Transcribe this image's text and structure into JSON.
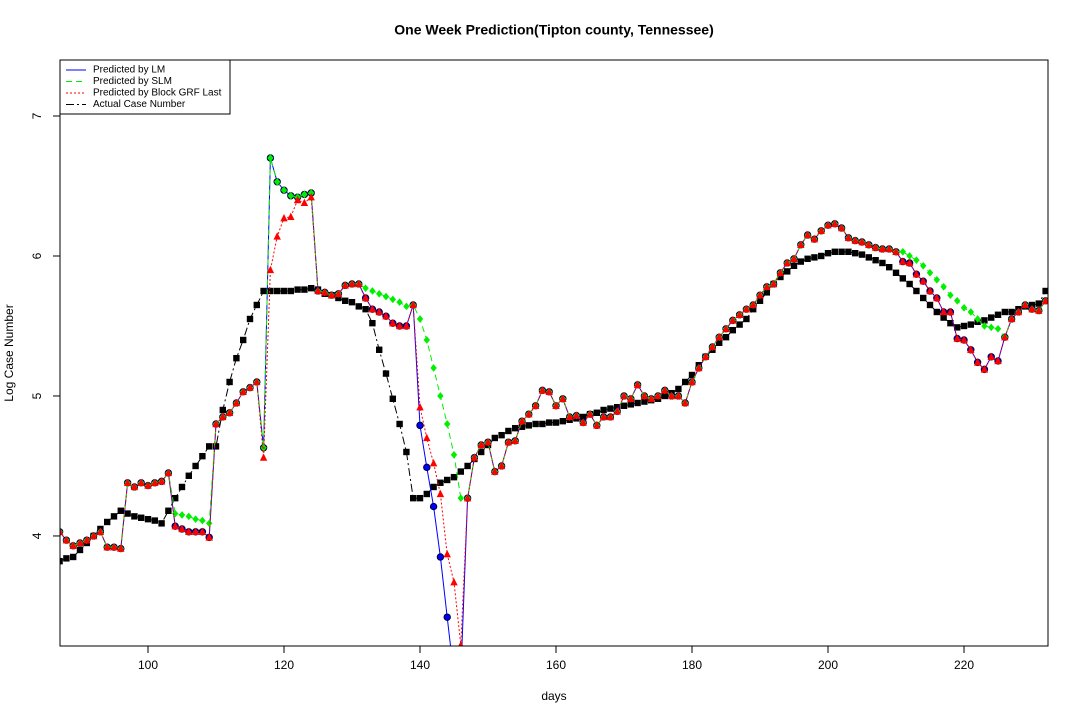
{
  "chart_data": {
    "type": "line",
    "title": "One Week Prediction(Tipton county, Tennessee)",
    "x_label": "days",
    "y_label": "Log Case Number",
    "xlim": [
      87.06,
      232.35
    ],
    "ylim": [
      3.214,
      7.4
    ],
    "xticks": [
      100,
      120,
      140,
      160,
      180,
      200,
      220
    ],
    "yticks": [
      4,
      5,
      6,
      7
    ],
    "legend": "top-left",
    "x": [
      87,
      88,
      89,
      90,
      91,
      92,
      93,
      94,
      95,
      96,
      97,
      98,
      99,
      100,
      101,
      102,
      103,
      104,
      105,
      106,
      107,
      108,
      109,
      110,
      111,
      112,
      113,
      114,
      115,
      116,
      117,
      118,
      119,
      120,
      121,
      122,
      123,
      124,
      125,
      126,
      127,
      128,
      129,
      130,
      131,
      132,
      133,
      134,
      135,
      136,
      137,
      138,
      139,
      140,
      141,
      142,
      143,
      144,
      145,
      146,
      147,
      148,
      149,
      150,
      151,
      152,
      153,
      154,
      155,
      156,
      157,
      158,
      159,
      160,
      161,
      162,
      163,
      164,
      165,
      166,
      167,
      168,
      169,
      170,
      171,
      172,
      173,
      174,
      175,
      176,
      177,
      178,
      179,
      180,
      181,
      182,
      183,
      184,
      185,
      186,
      187,
      188,
      189,
      190,
      191,
      192,
      193,
      194,
      195,
      196,
      197,
      198,
      199,
      200,
      201,
      202,
      203,
      204,
      205,
      206,
      207,
      208,
      209,
      210,
      211,
      212,
      213,
      214,
      215,
      216,
      217,
      218,
      219,
      220,
      221,
      222,
      223,
      224,
      225,
      226,
      227,
      228,
      229,
      230,
      231,
      232
    ],
    "series": [
      {
        "name": "Predicted by LM",
        "color": "#0000ff",
        "marker": "circle",
        "dash": "solid",
        "values": [
          4.03,
          3.97,
          3.93,
          3.95,
          3.97,
          4.0,
          4.03,
          3.92,
          3.92,
          3.91,
          4.38,
          4.35,
          4.38,
          4.36,
          4.38,
          4.39,
          4.45,
          4.07,
          4.05,
          4.03,
          4.03,
          4.03,
          3.99,
          4.8,
          4.85,
          4.88,
          4.95,
          5.03,
          5.06,
          5.1,
          4.63,
          6.7,
          6.53,
          6.47,
          6.43,
          6.42,
          6.44,
          6.45,
          5.75,
          5.74,
          5.72,
          5.73,
          5.79,
          5.8,
          5.8,
          5.7,
          5.62,
          5.6,
          5.57,
          5.52,
          5.5,
          5.5,
          5.65,
          4.79,
          4.49,
          4.21,
          3.85,
          3.42,
          3.0,
          3.0,
          4.27,
          4.56,
          4.65,
          4.67,
          4.46,
          4.5,
          4.67,
          4.68,
          4.82,
          4.87,
          4.93,
          5.04,
          5.03,
          4.93,
          4.98,
          4.85,
          4.86,
          4.81,
          4.87,
          4.79,
          4.85,
          4.85,
          4.89,
          5.0,
          4.98,
          5.08,
          5.0,
          4.98,
          5.0,
          5.04,
          5.0,
          5.0,
          4.95,
          5.1,
          5.2,
          5.28,
          5.35,
          5.42,
          5.48,
          5.54,
          5.58,
          5.62,
          5.65,
          5.72,
          5.78,
          5.8,
          5.88,
          5.95,
          5.98,
          6.08,
          6.15,
          6.12,
          6.18,
          6.22,
          6.23,
          6.2,
          6.13,
          6.11,
          6.1,
          6.08,
          6.06,
          6.05,
          6.05,
          6.03,
          5.96,
          5.95,
          5.87,
          5.82,
          5.75,
          5.7,
          5.6,
          5.6,
          5.41,
          5.4,
          5.33,
          5.24,
          5.19,
          5.28,
          5.25,
          5.42,
          5.55,
          5.6,
          5.65,
          5.62,
          5.61,
          5.68
        ]
      },
      {
        "name": "Predicted by SLM",
        "color": "#00ee00",
        "marker": "diamond",
        "dash": "dashed",
        "values": [
          4.03,
          3.97,
          3.93,
          3.95,
          3.97,
          4.0,
          4.03,
          3.92,
          3.92,
          3.91,
          4.38,
          4.35,
          4.38,
          4.36,
          4.38,
          4.39,
          4.45,
          4.16,
          4.15,
          4.14,
          4.12,
          4.11,
          4.09,
          4.8,
          4.85,
          4.88,
          4.95,
          5.03,
          5.06,
          5.1,
          4.63,
          6.7,
          6.53,
          6.47,
          6.43,
          6.42,
          6.44,
          6.45,
          5.75,
          5.74,
          5.72,
          5.73,
          5.79,
          5.8,
          5.8,
          5.77,
          5.75,
          5.73,
          5.71,
          5.69,
          5.67,
          5.64,
          5.65,
          5.55,
          5.4,
          5.2,
          5.0,
          4.8,
          4.58,
          4.27,
          4.27,
          4.56,
          4.65,
          4.67,
          4.46,
          4.5,
          4.67,
          4.68,
          4.82,
          4.87,
          4.93,
          5.04,
          5.03,
          4.93,
          4.98,
          4.85,
          4.86,
          4.81,
          4.87,
          4.79,
          4.85,
          4.85,
          4.89,
          5.0,
          4.98,
          5.08,
          5.0,
          4.98,
          5.0,
          5.04,
          5.0,
          5.0,
          4.95,
          5.1,
          5.2,
          5.28,
          5.35,
          5.42,
          5.48,
          5.54,
          5.58,
          5.62,
          5.65,
          5.72,
          5.78,
          5.8,
          5.88,
          5.95,
          5.98,
          6.08,
          6.15,
          6.12,
          6.18,
          6.22,
          6.23,
          6.2,
          6.13,
          6.11,
          6.1,
          6.08,
          6.06,
          6.05,
          6.05,
          6.03,
          6.03,
          6.0,
          5.97,
          5.93,
          5.88,
          5.83,
          5.78,
          5.72,
          5.68,
          5.63,
          5.6,
          5.55,
          5.5,
          5.49,
          5.48,
          5.42,
          5.55,
          5.6,
          5.65,
          5.62,
          5.61,
          5.68
        ]
      },
      {
        "name": "Predicted by Block GRF Last",
        "color": "#ff0000",
        "marker": "triangle",
        "dash": "dotted",
        "values": [
          4.03,
          3.97,
          3.93,
          3.95,
          3.97,
          4.0,
          4.03,
          3.92,
          3.92,
          3.91,
          4.38,
          4.35,
          4.38,
          4.36,
          4.38,
          4.39,
          4.45,
          4.07,
          4.05,
          4.03,
          4.03,
          4.03,
          3.99,
          4.8,
          4.85,
          4.88,
          4.95,
          5.03,
          5.06,
          5.1,
          4.56,
          5.9,
          6.14,
          6.27,
          6.28,
          6.4,
          6.38,
          6.42,
          5.75,
          5.74,
          5.72,
          5.73,
          5.79,
          5.8,
          5.8,
          5.7,
          5.62,
          5.6,
          5.57,
          5.52,
          5.5,
          5.5,
          5.65,
          4.92,
          4.7,
          4.52,
          4.3,
          3.87,
          3.67,
          3.22,
          4.27,
          4.56,
          4.65,
          4.67,
          4.46,
          4.5,
          4.67,
          4.68,
          4.82,
          4.87,
          4.93,
          5.04,
          5.03,
          4.93,
          4.98,
          4.85,
          4.86,
          4.81,
          4.87,
          4.79,
          4.85,
          4.85,
          4.89,
          5.0,
          4.98,
          5.08,
          5.0,
          4.98,
          5.0,
          5.04,
          5.0,
          5.0,
          4.95,
          5.1,
          5.2,
          5.28,
          5.35,
          5.42,
          5.48,
          5.54,
          5.58,
          5.62,
          5.65,
          5.72,
          5.78,
          5.8,
          5.88,
          5.95,
          5.98,
          6.08,
          6.15,
          6.12,
          6.18,
          6.22,
          6.23,
          6.2,
          6.13,
          6.11,
          6.1,
          6.08,
          6.06,
          6.05,
          6.05,
          6.03,
          5.96,
          5.95,
          5.87,
          5.82,
          5.75,
          5.7,
          5.6,
          5.6,
          5.41,
          5.4,
          5.33,
          5.24,
          5.19,
          5.28,
          5.25,
          5.42,
          5.55,
          5.6,
          5.65,
          5.62,
          5.61,
          5.68
        ]
      },
      {
        "name": "Actual Case Number",
        "color": "#000000",
        "marker": "square",
        "dash": "dotdash",
        "values": [
          3.82,
          3.84,
          3.85,
          3.9,
          3.95,
          4.0,
          4.05,
          4.1,
          4.14,
          4.18,
          4.16,
          4.14,
          4.13,
          4.12,
          4.11,
          4.09,
          4.18,
          4.27,
          4.35,
          4.43,
          4.5,
          4.57,
          4.64,
          4.64,
          4.9,
          5.1,
          5.27,
          5.4,
          5.55,
          5.65,
          5.75,
          5.75,
          5.75,
          5.75,
          5.75,
          5.76,
          5.76,
          5.77,
          5.76,
          5.73,
          5.72,
          5.7,
          5.68,
          5.67,
          5.64,
          5.62,
          5.52,
          5.33,
          5.16,
          4.98,
          4.8,
          4.6,
          4.27,
          4.27,
          4.3,
          4.35,
          4.38,
          4.4,
          4.42,
          4.46,
          4.5,
          4.55,
          4.6,
          4.65,
          4.7,
          4.72,
          4.75,
          4.77,
          4.78,
          4.79,
          4.8,
          4.8,
          4.81,
          4.81,
          4.82,
          4.83,
          4.84,
          4.85,
          4.87,
          4.88,
          4.9,
          4.91,
          4.92,
          4.93,
          4.94,
          4.95,
          4.96,
          4.97,
          4.98,
          5.0,
          5.02,
          5.05,
          5.1,
          5.15,
          5.22,
          5.28,
          5.33,
          5.38,
          5.42,
          5.47,
          5.51,
          5.55,
          5.62,
          5.68,
          5.74,
          5.8,
          5.85,
          5.89,
          5.93,
          5.96,
          5.98,
          5.99,
          6.0,
          6.02,
          6.03,
          6.03,
          6.03,
          6.02,
          6.01,
          5.99,
          5.97,
          5.95,
          5.92,
          5.88,
          5.84,
          5.8,
          5.75,
          5.7,
          5.65,
          5.6,
          5.56,
          5.52,
          5.49,
          5.5,
          5.51,
          5.53,
          5.54,
          5.56,
          5.58,
          5.6,
          5.6,
          5.62,
          5.64,
          5.65,
          5.66,
          5.75
        ]
      }
    ]
  }
}
